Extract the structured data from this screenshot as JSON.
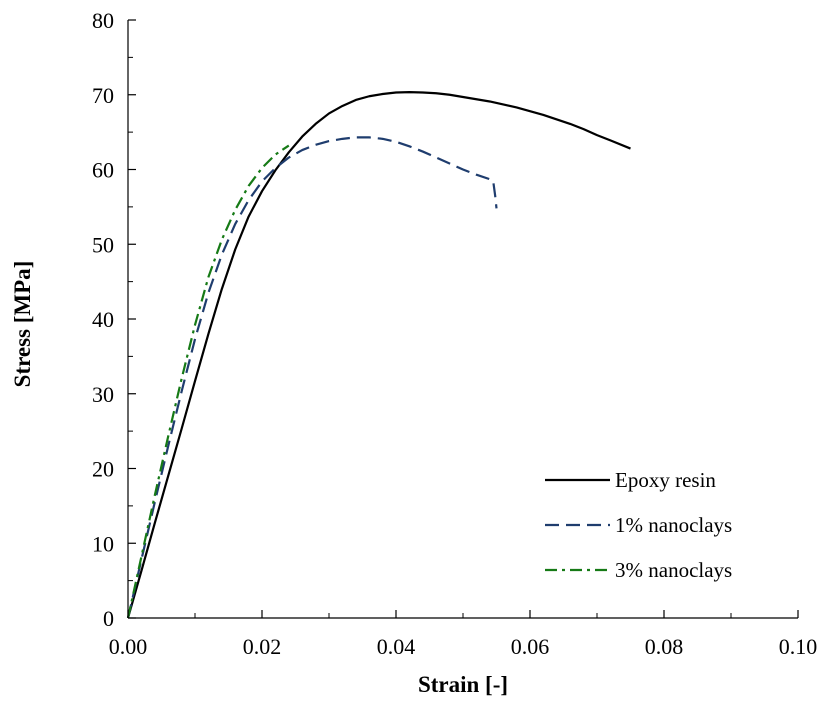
{
  "chart_data": {
    "type": "line",
    "xlabel": "Strain [-]",
    "ylabel": "Stress [MPa]",
    "xlim": [
      0,
      0.1
    ],
    "ylim": [
      0,
      80
    ],
    "xticks": [
      {
        "value": 0.0,
        "label": "0.00"
      },
      {
        "value": 0.02,
        "label": "0.02"
      },
      {
        "value": 0.04,
        "label": "0.04"
      },
      {
        "value": 0.06,
        "label": "0.06"
      },
      {
        "value": 0.08,
        "label": "0.08"
      },
      {
        "value": 0.1,
        "label": "0.10"
      }
    ],
    "yticks": [
      {
        "value": 0,
        "label": "0"
      },
      {
        "value": 10,
        "label": "10"
      },
      {
        "value": 20,
        "label": "20"
      },
      {
        "value": 30,
        "label": "30"
      },
      {
        "value": 40,
        "label": "40"
      },
      {
        "value": 50,
        "label": "50"
      },
      {
        "value": 60,
        "label": "60"
      },
      {
        "value": 70,
        "label": "70"
      },
      {
        "value": 80,
        "label": "80"
      }
    ],
    "grid": false,
    "legend_position": "bottom-right",
    "series": [
      {
        "name": "Epoxy resin",
        "color": "#000000",
        "style": "solid",
        "x": [
          0,
          0.002,
          0.004,
          0.006,
          0.008,
          0.01,
          0.012,
          0.014,
          0.016,
          0.018,
          0.02,
          0.022,
          0.024,
          0.026,
          0.028,
          0.03,
          0.032,
          0.034,
          0.036,
          0.038,
          0.04,
          0.042,
          0.044,
          0.046,
          0.048,
          0.05,
          0.052,
          0.054,
          0.056,
          0.058,
          0.06,
          0.062,
          0.064,
          0.066,
          0.068,
          0.07,
          0.072,
          0.075
        ],
        "y": [
          0,
          6.3,
          12.7,
          19.0,
          25.3,
          31.7,
          38.0,
          44.0,
          49.3,
          53.7,
          57.1,
          59.9,
          62.3,
          64.4,
          66.1,
          67.5,
          68.5,
          69.3,
          69.8,
          70.1,
          70.3,
          70.35,
          70.3,
          70.2,
          70.0,
          69.7,
          69.4,
          69.1,
          68.7,
          68.3,
          67.8,
          67.3,
          66.7,
          66.1,
          65.4,
          64.6,
          63.9,
          62.8
        ]
      },
      {
        "name": "1% nanoclays",
        "color": "#1f3d6e",
        "style": "dashed",
        "x": [
          0,
          0.002,
          0.004,
          0.006,
          0.008,
          0.01,
          0.012,
          0.014,
          0.016,
          0.018,
          0.02,
          0.022,
          0.024,
          0.026,
          0.028,
          0.03,
          0.032,
          0.034,
          0.036,
          0.038,
          0.04,
          0.042,
          0.044,
          0.046,
          0.048,
          0.05,
          0.052,
          0.054,
          0.0545,
          0.0548,
          0.055
        ],
        "y": [
          0,
          7.8,
          15.5,
          23.0,
          30.3,
          37.3,
          43.5,
          48.6,
          52.7,
          55.9,
          58.4,
          60.2,
          61.6,
          62.6,
          63.3,
          63.8,
          64.1,
          64.3,
          64.3,
          64.1,
          63.7,
          63.1,
          62.4,
          61.6,
          60.8,
          60.0,
          59.3,
          58.7,
          58.5,
          56.5,
          54.8
        ]
      },
      {
        "name": "3% nanoclays",
        "color": "#167a16",
        "style": "dashdot",
        "x": [
          0,
          0.002,
          0.004,
          0.006,
          0.008,
          0.01,
          0.012,
          0.014,
          0.016,
          0.018,
          0.02,
          0.022,
          0.024
        ],
        "y": [
          0,
          8.2,
          16.4,
          24.3,
          32.0,
          39.2,
          45.6,
          50.6,
          54.6,
          57.8,
          60.2,
          62.0,
          63.2
        ]
      }
    ]
  }
}
